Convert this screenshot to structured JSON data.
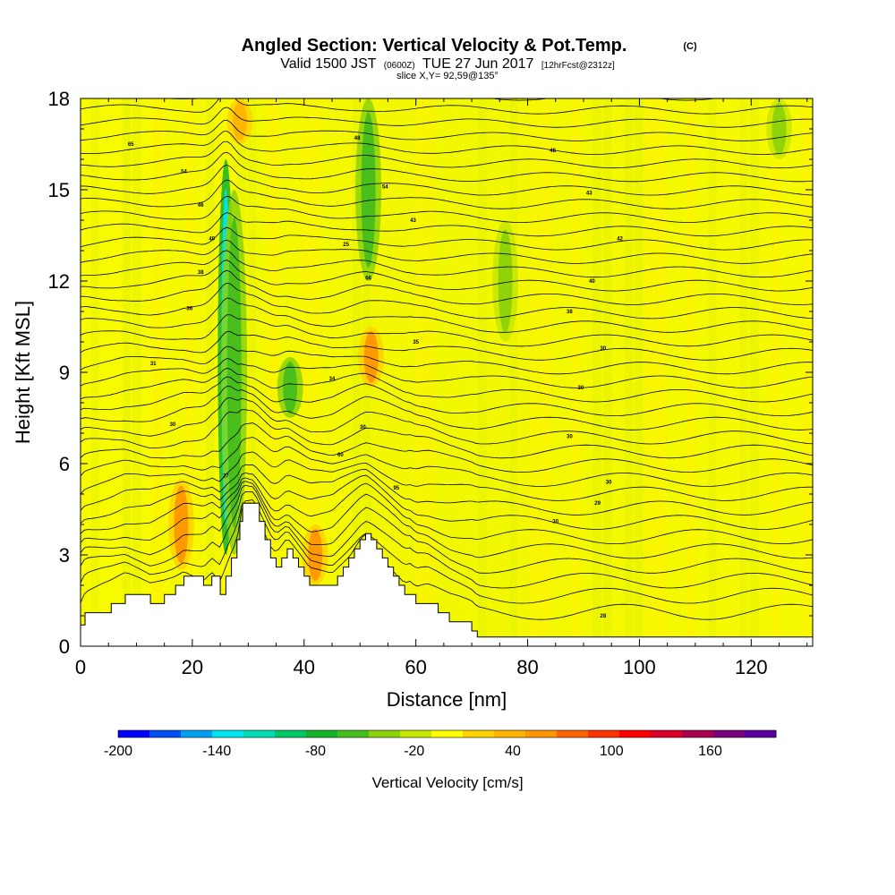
{
  "chart_data": {
    "type": "heatmap",
    "title": "Angled Section: Vertical Velocity & Pot.Temp.",
    "title_tag": "(C)",
    "subtitle_parts": {
      "valid": "Valid 1500 JST",
      "utc": "(0600Z)",
      "date": "TUE 27 Jun 2017",
      "fcst": "[12hrFcst@2312z]"
    },
    "slice_label": "slice X,Y= 92,59@135°",
    "xlabel": "Distance [nm]",
    "ylabel": "Height [Kft MSL]",
    "xlim": [
      0,
      131
    ],
    "ylim": [
      0,
      18
    ],
    "xticks": [
      "0",
      "20",
      "40",
      "60",
      "80",
      "100",
      "120"
    ],
    "yticks": [
      "0",
      "3",
      "6",
      "9",
      "12",
      "15",
      "18"
    ],
    "grid": false,
    "colorbar": {
      "label": "Vertical Velocity [cm/s]",
      "range": [
        -200,
        200
      ],
      "step": 20,
      "tick_labels": [
        "-200",
        "-140",
        "-80",
        "-20",
        "40",
        "100",
        "160"
      ],
      "colors": [
        "#0000ff",
        "#0050f5",
        "#00a0f0",
        "#00e6f0",
        "#00dcb4",
        "#00c864",
        "#14b428",
        "#46be1e",
        "#8cd20a",
        "#c8e600",
        "#ffff00",
        "#ffd200",
        "#ffb400",
        "#ff9600",
        "#ff6400",
        "#ff3200",
        "#ff0000",
        "#dc0028",
        "#aa0050",
        "#780078",
        "#5a00a0"
      ]
    },
    "terrain_heights": [
      [
        0,
        0.7
      ],
      [
        0.8,
        1.1
      ],
      [
        5.5,
        1.4
      ],
      [
        8,
        1.7
      ],
      [
        12.5,
        1.4
      ],
      [
        15,
        1.7
      ],
      [
        17,
        2.0
      ],
      [
        18.5,
        2.3
      ],
      [
        22,
        2.0
      ],
      [
        23.5,
        2.3
      ],
      [
        25,
        1.7
      ],
      [
        26,
        2.3
      ],
      [
        27,
        2.9
      ],
      [
        28,
        3.5
      ],
      [
        28.5,
        4.1
      ],
      [
        29,
        4.7
      ],
      [
        31,
        4.7
      ],
      [
        32,
        4.1
      ],
      [
        33,
        3.5
      ],
      [
        34,
        2.9
      ],
      [
        35,
        2.6
      ],
      [
        36,
        2.9
      ],
      [
        37,
        3.2
      ],
      [
        38,
        2.9
      ],
      [
        39,
        2.6
      ],
      [
        40,
        2.3
      ],
      [
        41,
        2.0
      ],
      [
        42,
        2.0
      ],
      [
        43,
        2.0
      ],
      [
        44,
        2.0
      ],
      [
        45,
        2.0
      ],
      [
        46,
        2.3
      ],
      [
        47,
        2.6
      ],
      [
        48,
        2.9
      ],
      [
        49,
        3.2
      ],
      [
        50,
        3.5
      ],
      [
        51,
        3.7
      ],
      [
        52,
        3.5
      ],
      [
        53,
        3.2
      ],
      [
        54,
        2.9
      ],
      [
        55,
        2.6
      ],
      [
        56,
        2.3
      ],
      [
        57,
        2.0
      ],
      [
        58,
        1.7
      ],
      [
        59,
        1.7
      ],
      [
        60,
        1.4
      ],
      [
        62,
        1.4
      ],
      [
        64,
        1.1
      ],
      [
        66,
        0.8
      ],
      [
        70,
        0.5
      ],
      [
        71,
        0.3
      ],
      [
        131,
        0.3
      ]
    ],
    "velocity_features": [
      {
        "x": 26,
        "y_from": 3,
        "y_to": 16,
        "value": -140
      },
      {
        "x": 27.5,
        "y_from": 3,
        "y_to": 15,
        "value": -60
      },
      {
        "x": 51.5,
        "y_from": 12,
        "y_to": 18,
        "value": -60
      },
      {
        "x": 37.5,
        "y_from": 7.5,
        "y_to": 9.5,
        "value": -50
      },
      {
        "x": 76,
        "y_from": 10,
        "y_to": 14,
        "value": -40
      },
      {
        "x": 125,
        "y_from": 16,
        "y_to": 18,
        "value": -40
      },
      {
        "x": 18,
        "y_from": 2.5,
        "y_to": 5.5,
        "value": 60
      },
      {
        "x": 52,
        "y_from": 8.5,
        "y_to": 10.5,
        "value": 60
      },
      {
        "x": 42,
        "y_from": 2,
        "y_to": 4,
        "value": 60
      },
      {
        "x": 28.5,
        "y_from": 16.5,
        "y_to": 18,
        "value": 40
      }
    ],
    "isentrope_levels": [
      28,
      29,
      30,
      31,
      32,
      33,
      34,
      35,
      36,
      37,
      38,
      39,
      40,
      41,
      42,
      43,
      44,
      45,
      46,
      47,
      48,
      49,
      50,
      51,
      52,
      53,
      54,
      55,
      56,
      57,
      58,
      59,
      60,
      61,
      62,
      63,
      64,
      65,
      66
    ],
    "isentrope_labels": [
      {
        "x": 9,
        "y": 16.5,
        "text": "65"
      },
      {
        "x": 18.5,
        "y": 15.6,
        "text": "54"
      },
      {
        "x": 21.5,
        "y": 14.5,
        "text": "46"
      },
      {
        "x": 23.5,
        "y": 13.4,
        "text": "40"
      },
      {
        "x": 21.5,
        "y": 12.3,
        "text": "38"
      },
      {
        "x": 19.5,
        "y": 11.1,
        "text": "36"
      },
      {
        "x": 13,
        "y": 9.3,
        "text": "31"
      },
      {
        "x": 16.5,
        "y": 7.3,
        "text": "30"
      },
      {
        "x": 26,
        "y": 5.6,
        "text": "27"
      },
      {
        "x": 49.5,
        "y": 16.7,
        "text": "48"
      },
      {
        "x": 54.5,
        "y": 15.1,
        "text": "54"
      },
      {
        "x": 59.5,
        "y": 14.0,
        "text": "43"
      },
      {
        "x": 47.5,
        "y": 13.2,
        "text": "25"
      },
      {
        "x": 51.5,
        "y": 12.1,
        "text": "66"
      },
      {
        "x": 60,
        "y": 10.0,
        "text": "35"
      },
      {
        "x": 45,
        "y": 8.8,
        "text": "34"
      },
      {
        "x": 50.5,
        "y": 7.2,
        "text": "30"
      },
      {
        "x": 46.5,
        "y": 6.3,
        "text": "60"
      },
      {
        "x": 56.5,
        "y": 5.2,
        "text": "95"
      },
      {
        "x": 84.5,
        "y": 16.3,
        "text": "48"
      },
      {
        "x": 91,
        "y": 14.9,
        "text": "43"
      },
      {
        "x": 96.5,
        "y": 13.4,
        "text": "42"
      },
      {
        "x": 91.5,
        "y": 12.0,
        "text": "40"
      },
      {
        "x": 87.5,
        "y": 11.0,
        "text": "38"
      },
      {
        "x": 93.5,
        "y": 9.8,
        "text": "30"
      },
      {
        "x": 89.5,
        "y": 8.5,
        "text": "30"
      },
      {
        "x": 87.5,
        "y": 6.9,
        "text": "30"
      },
      {
        "x": 94.5,
        "y": 5.4,
        "text": "30"
      },
      {
        "x": 92.5,
        "y": 4.7,
        "text": "29"
      },
      {
        "x": 85,
        "y": 4.1,
        "text": "30"
      },
      {
        "x": 93.5,
        "y": 1.0,
        "text": "28"
      }
    ]
  }
}
